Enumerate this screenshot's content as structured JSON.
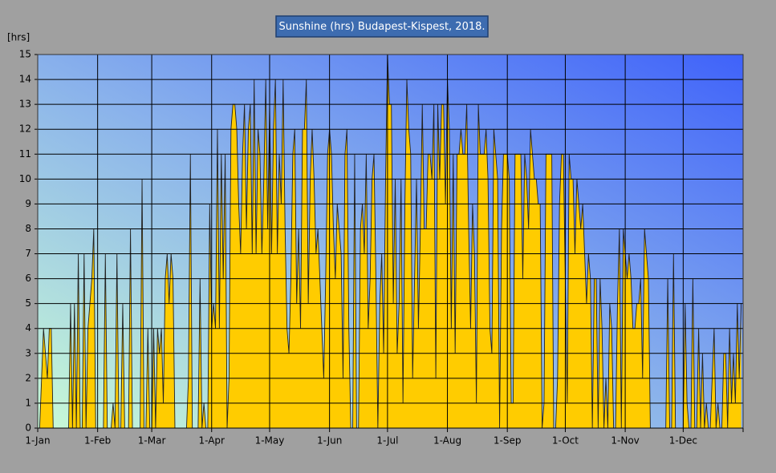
{
  "chart_data": {
    "type": "area",
    "title": "Sunshine (hrs) Budapest-Kispest, 2018.",
    "y_label": "[hrs]",
    "color": "#ffcc00",
    "line_color": "#222222",
    "grid": true,
    "ylim": [
      0,
      15
    ],
    "yticks": [
      0,
      1,
      2,
      3,
      4,
      5,
      6,
      7,
      8,
      9,
      10,
      11,
      12,
      13,
      14,
      15
    ],
    "categories": [
      "1-Jan",
      null,
      null,
      null,
      null,
      null,
      null,
      null,
      null,
      null,
      null,
      null,
      null,
      null,
      null,
      null,
      null,
      null,
      null,
      null,
      null,
      null,
      null,
      null,
      null,
      null,
      null,
      null,
      null,
      null,
      null,
      "1-Feb",
      null,
      null,
      null,
      null,
      null,
      null,
      null,
      null,
      null,
      null,
      null,
      null,
      null,
      null,
      null,
      null,
      null,
      null,
      null,
      null,
      null,
      null,
      null,
      null,
      null,
      null,
      null,
      "1-Mar",
      null,
      null,
      null,
      null,
      null,
      null,
      null,
      null,
      null,
      null,
      null,
      null,
      null,
      null,
      null,
      null,
      null,
      null,
      null,
      null,
      null,
      null,
      null,
      null,
      null,
      null,
      null,
      null,
      null,
      null,
      "1-Apr",
      null,
      null,
      null,
      null,
      null,
      null,
      null,
      null,
      null,
      null,
      null,
      null,
      null,
      null,
      null,
      null,
      null,
      null,
      null,
      null,
      null,
      null,
      null,
      null,
      null,
      null,
      null,
      null,
      null,
      "1-May",
      null,
      null,
      null,
      null,
      null,
      null,
      null,
      null,
      null,
      null,
      null,
      null,
      null,
      null,
      null,
      null,
      null,
      null,
      null,
      null,
      null,
      null,
      null,
      null,
      null,
      null,
      null,
      null,
      null,
      null,
      "1-Jun",
      null,
      null,
      null,
      null,
      null,
      null,
      null,
      null,
      null,
      null,
      null,
      null,
      null,
      null,
      null,
      null,
      null,
      null,
      null,
      null,
      null,
      null,
      null,
      null,
      null,
      null,
      null,
      null,
      null,
      "1-Jul",
      null,
      null,
      null,
      null,
      null,
      null,
      null,
      null,
      null,
      null,
      null,
      null,
      null,
      null,
      null,
      null,
      null,
      null,
      null,
      null,
      null,
      null,
      null,
      null,
      null,
      null,
      null,
      null,
      null,
      null,
      "1-Aug",
      null,
      null,
      null,
      null,
      null,
      null,
      null,
      null,
      null,
      null,
      null,
      null,
      null,
      null,
      null,
      null,
      null,
      null,
      null,
      null,
      null,
      null,
      null,
      null,
      null,
      null,
      null,
      null,
      null,
      null,
      "1-Sep",
      null,
      null,
      null,
      null,
      null,
      null,
      null,
      null,
      null,
      null,
      null,
      null,
      null,
      null,
      null,
      null,
      null,
      null,
      null,
      null,
      null,
      null,
      null,
      null,
      null,
      null,
      null,
      null,
      null,
      "1-Oct",
      null,
      null,
      null,
      null,
      null,
      null,
      null,
      null,
      null,
      null,
      null,
      null,
      null,
      null,
      null,
      null,
      null,
      null,
      null,
      null,
      null,
      null,
      null,
      null,
      null,
      null,
      null,
      null,
      null,
      null,
      "1-Nov",
      null,
      null,
      null,
      null,
      null,
      null,
      null,
      null,
      null,
      null,
      null,
      null,
      null,
      null,
      null,
      null,
      null,
      null,
      null,
      null,
      null,
      null,
      null,
      null,
      null,
      null,
      null,
      null,
      null,
      "1-Dec",
      null,
      null,
      null,
      null,
      null,
      null,
      null,
      null,
      null,
      null,
      null,
      null,
      null,
      null,
      null,
      null,
      null,
      null,
      null,
      null,
      null,
      null,
      null,
      null,
      null,
      null,
      null,
      null,
      null,
      null
    ],
    "values": [
      0,
      0,
      2,
      4,
      3,
      2,
      4,
      4,
      0,
      0,
      0,
      0,
      0,
      0,
      0,
      0,
      0,
      5,
      0,
      5,
      0,
      7,
      0,
      0,
      7,
      0,
      4,
      5,
      6,
      8,
      0,
      0,
      0,
      0,
      0,
      7,
      0,
      0,
      0,
      1,
      0,
      7,
      0,
      0,
      5,
      0,
      0,
      0,
      8,
      0,
      0,
      0,
      0,
      0,
      10,
      0,
      0,
      4,
      0,
      0,
      4,
      0,
      4,
      3,
      4,
      1,
      6,
      7,
      5,
      7,
      6,
      0,
      0,
      0,
      0,
      0,
      0,
      0,
      2,
      11,
      0,
      0,
      0,
      0,
      6,
      0,
      1,
      0,
      0,
      9,
      4,
      5,
      4,
      12,
      4,
      11,
      6,
      11,
      0,
      2,
      12,
      13,
      13,
      12,
      9,
      7,
      11,
      13,
      8,
      12,
      13,
      7,
      14,
      7,
      12,
      11,
      7,
      10,
      14,
      8,
      13,
      7,
      12,
      14,
      7,
      11,
      9,
      14,
      8,
      4,
      3,
      6,
      11,
      12,
      5,
      8,
      4,
      12,
      12,
      14,
      5,
      10,
      12,
      10,
      7,
      8,
      6,
      4,
      2,
      6,
      11,
      12,
      11,
      8,
      6,
      9,
      8,
      7,
      2,
      11,
      12,
      4,
      0,
      0,
      11,
      0,
      0,
      8,
      9,
      7,
      11,
      4,
      6,
      10,
      11,
      6,
      0,
      5,
      7,
      3,
      10,
      15,
      13,
      13,
      5,
      10,
      3,
      5,
      10,
      1,
      9,
      14,
      12,
      11,
      2,
      6,
      10,
      4,
      8,
      13,
      8,
      8,
      11,
      11,
      10,
      13,
      2,
      13,
      10,
      13,
      13,
      9,
      14,
      12,
      4,
      11,
      3,
      11,
      11,
      12,
      11,
      11,
      13,
      8,
      4,
      9,
      7,
      1,
      13,
      11,
      11,
      11,
      12,
      10,
      4,
      3,
      12,
      11,
      10,
      0,
      8,
      11,
      11,
      11,
      10,
      1,
      1,
      11,
      11,
      11,
      11,
      6,
      11,
      10,
      8,
      12,
      11,
      10,
      10,
      9,
      9,
      0,
      1,
      11,
      11,
      11,
      11,
      0,
      0,
      2,
      9,
      11,
      11,
      6,
      1,
      11,
      10,
      10,
      7,
      10,
      9,
      8,
      9,
      7,
      5,
      7,
      6,
      0,
      6,
      6,
      0,
      6,
      4,
      0,
      2,
      0,
      5,
      4,
      0,
      0,
      5,
      8,
      0,
      8,
      7,
      6,
      7,
      6,
      4,
      4,
      5,
      5,
      6,
      2,
      8,
      7,
      6,
      0,
      0,
      0,
      0,
      0,
      0,
      0,
      0,
      0,
      6,
      0,
      0,
      7,
      0,
      0,
      0,
      0,
      0,
      5,
      1,
      0,
      0,
      6,
      0,
      0,
      4,
      0,
      3,
      0,
      1,
      0,
      0,
      2,
      4,
      0,
      1,
      0,
      0,
      3,
      3,
      0,
      4,
      1,
      3,
      1,
      5,
      2,
      5
    ]
  }
}
